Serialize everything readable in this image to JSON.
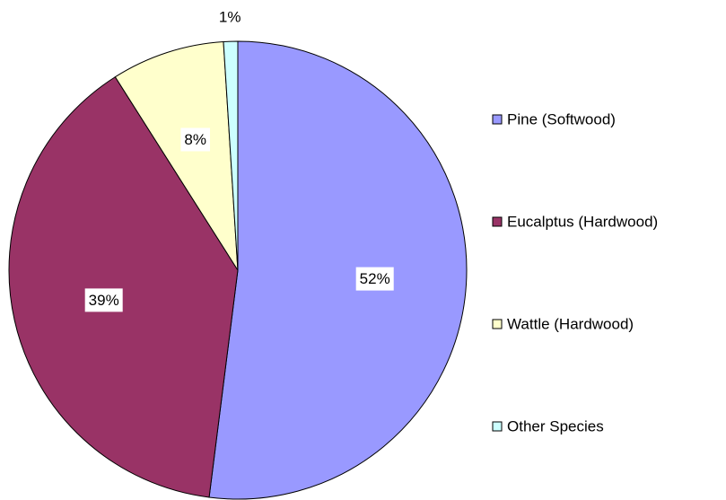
{
  "chart_data": {
    "type": "pie",
    "categories": [
      "Pine (Softwood)",
      "Eucalptus (Hardwood)",
      "Wattle (Hardwood)",
      "Other Species"
    ],
    "values": [
      52,
      39,
      8,
      1
    ],
    "value_labels": [
      "52%",
      "39%",
      "8%",
      "1%"
    ],
    "colors": [
      "#9999ff",
      "#993366",
      "#ffffcc",
      "#ccffff"
    ],
    "legend": "right"
  }
}
